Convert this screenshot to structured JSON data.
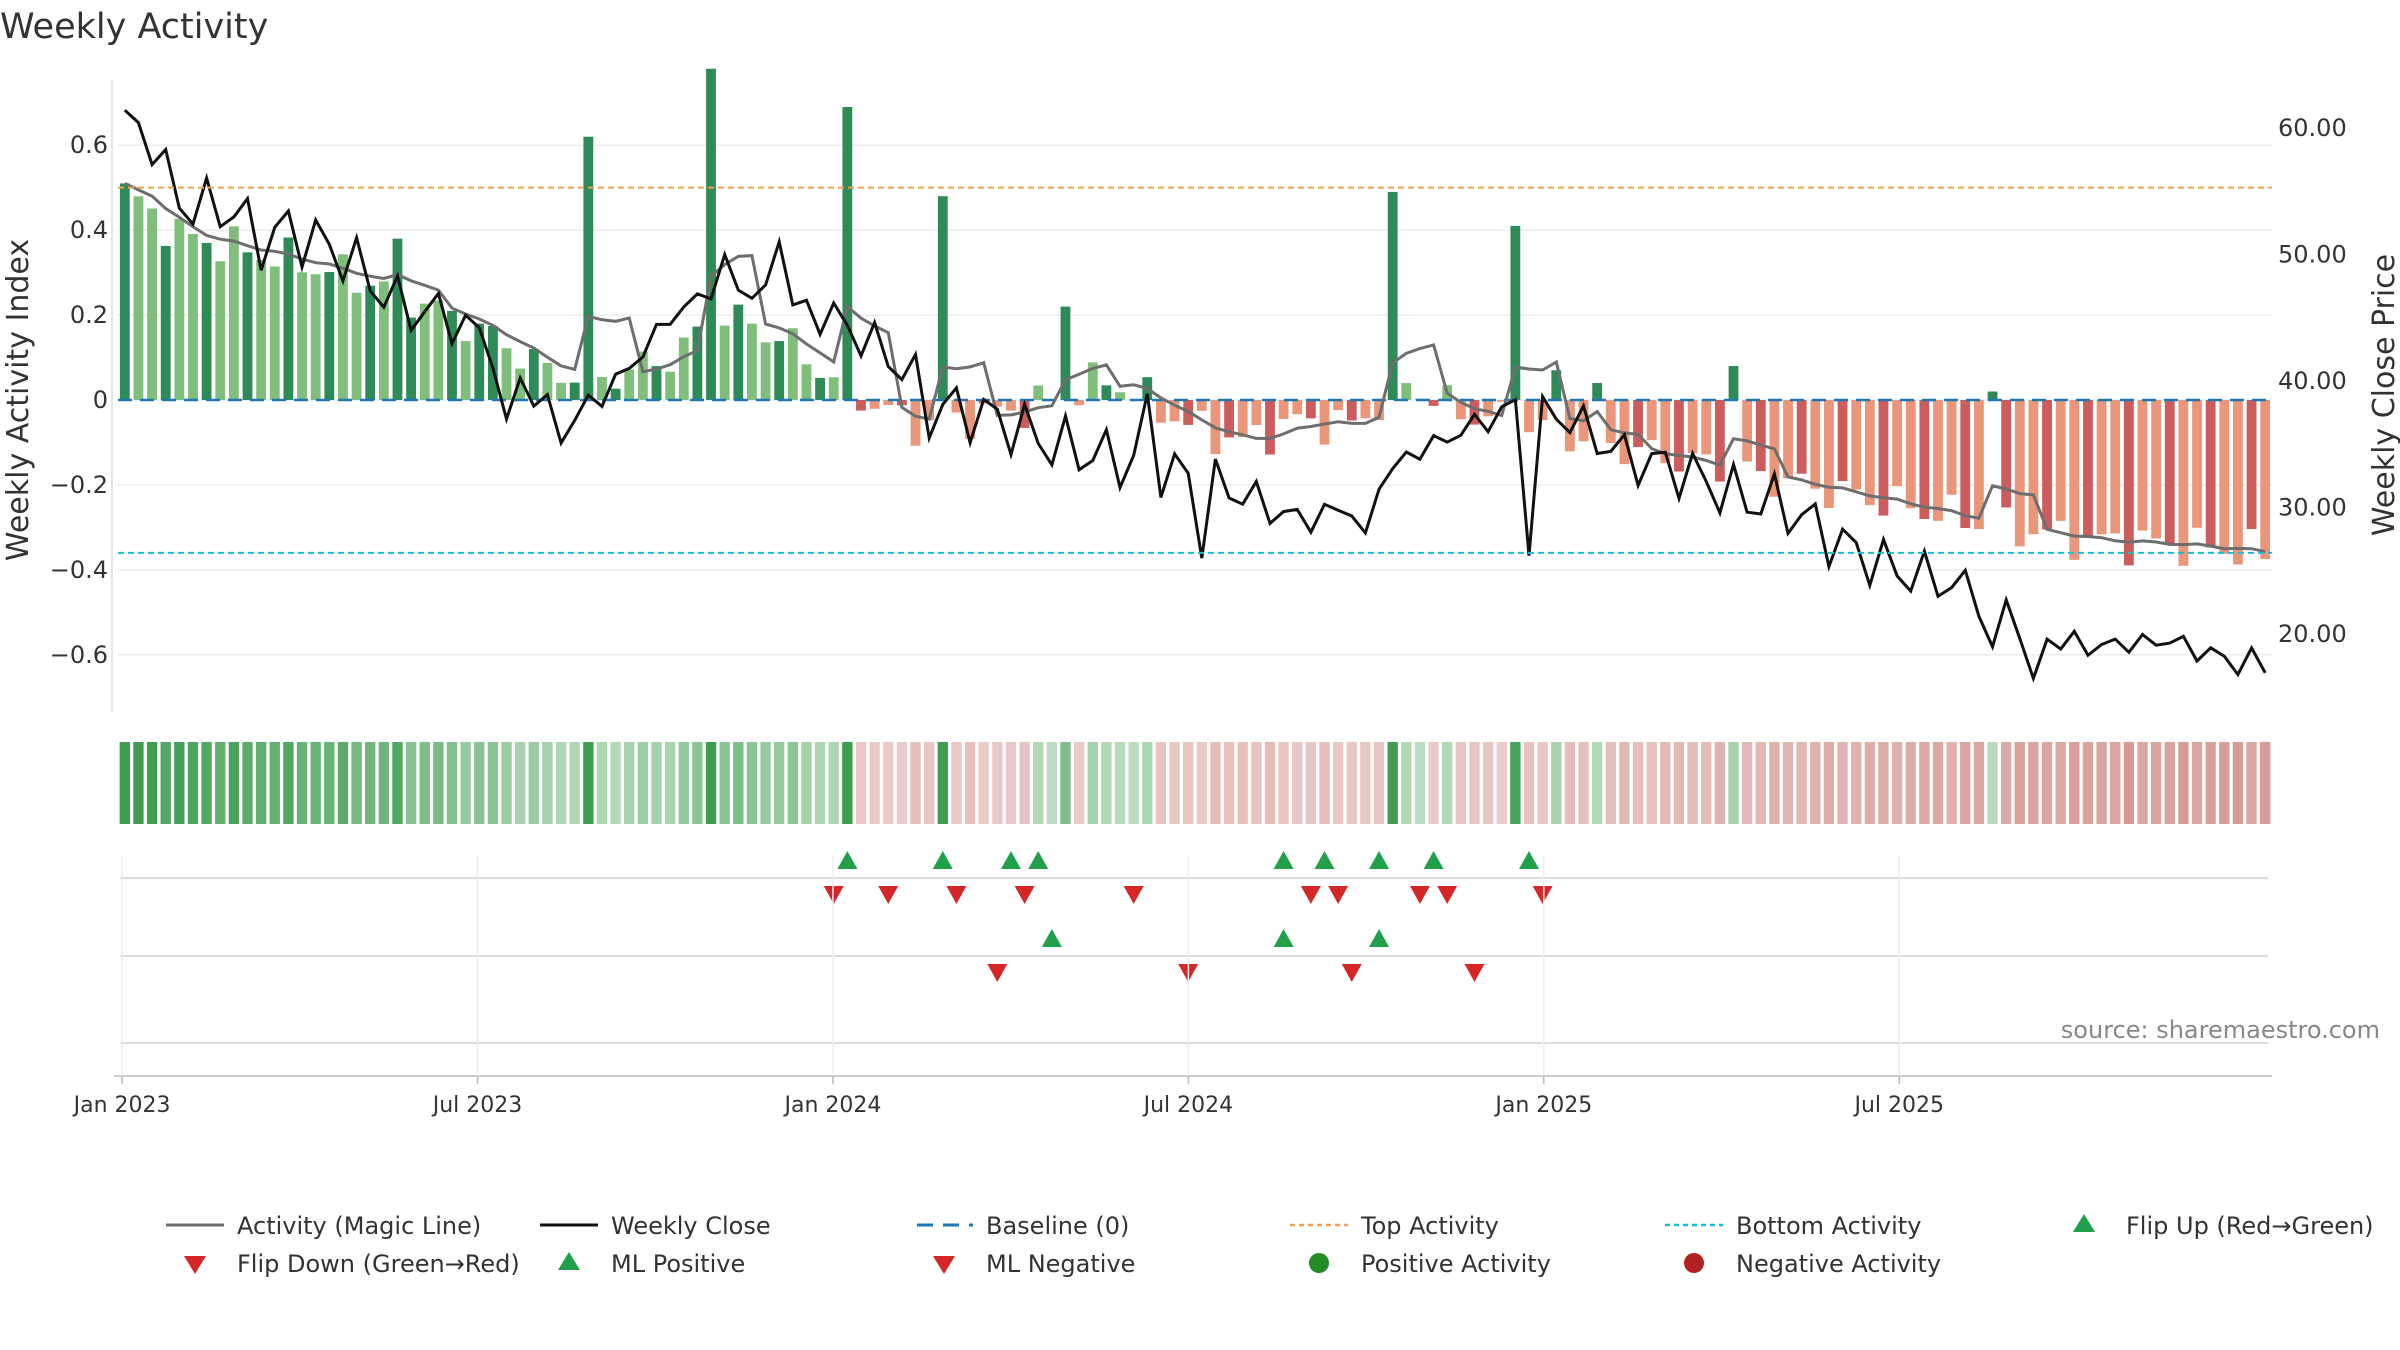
{
  "chart_data": {
    "type": "bar",
    "title": "Weekly Activity",
    "ylabel": "Weekly Activity Index",
    "y2label": "Weekly Close Price",
    "ylim": [
      -0.73,
      0.73
    ],
    "y2lim": [
      14.0,
      63.0
    ],
    "yticks": [
      0.6,
      0.4,
      0.2,
      0,
      -0.2,
      -0.4,
      -0.6
    ],
    "ytick_labels": [
      "0.6",
      "0.4",
      "0.2",
      "0",
      "−0.2",
      "−0.4",
      "−0.6"
    ],
    "y2ticks": [
      60,
      50,
      40,
      30,
      20
    ],
    "y2tick_labels": [
      "60.00",
      "50.00",
      "40.00",
      "30.00",
      "20.00"
    ],
    "xlabels": [
      "Jan 2023",
      "Jul 2023",
      "Jan 2024",
      "Jul 2024",
      "Jan 2025",
      "Jul 2025"
    ],
    "x_start_week_offset": -15,
    "week_count": 158,
    "top_activity": 0.5,
    "bottom_activity": -0.36,
    "activity_spikes": {
      "20": 0.38,
      "26": 0.18,
      "34": 0.62,
      "43": 0.78,
      "53": 0.69,
      "60": 0.48,
      "69": 0.22,
      "93": 0.49,
      "102": 0.41,
      "105": 0.07,
      "108": 0.04,
      "118": 0.08,
      "137": 0.02
    },
    "flip_up": [
      53,
      60,
      65,
      67,
      85,
      88,
      92,
      96,
      103
    ],
    "flip_down": [
      52,
      56,
      61,
      66,
      74,
      87,
      89,
      95,
      97,
      104
    ],
    "ml_positive": [
      68,
      85,
      92
    ],
    "ml_negative": [
      64,
      78,
      90,
      99
    ],
    "source": "source: sharemaestro.com",
    "legend": [
      {
        "label": "Activity (Magic Line)",
        "kind": "line",
        "color": "#6e6e6e"
      },
      {
        "label": "Weekly Close",
        "kind": "line",
        "color": "#111111"
      },
      {
        "label": "Baseline (0)",
        "kind": "dash",
        "color": "#1f77b4"
      },
      {
        "label": "Top Activity",
        "kind": "dotted",
        "color": "#f0a050"
      },
      {
        "label": "Bottom Activity",
        "kind": "dotted",
        "color": "#17becf"
      },
      {
        "label": "Flip Up (Red→Green)",
        "kind": "tri-up",
        "color": "#21a04a"
      },
      {
        "label": "Flip Down (Green→Red)",
        "kind": "tri-down",
        "color": "#d62728"
      },
      {
        "label": "ML Positive",
        "kind": "tri-up",
        "color": "#21a04a"
      },
      {
        "label": "ML Negative",
        "kind": "tri-down",
        "color": "#d62728"
      },
      {
        "label": "Positive Activity",
        "kind": "dot",
        "color": "#228b22"
      },
      {
        "label": "Negative Activity",
        "kind": "dot",
        "color": "#b22222"
      }
    ],
    "colors": {
      "pos_dark": "#2e8b57",
      "pos_light": "#7fbf7b",
      "neg_dark": "#cd5c5c",
      "neg_light": "#e9967a",
      "magic": "#6e6e6e",
      "close": "#111111"
    }
  }
}
